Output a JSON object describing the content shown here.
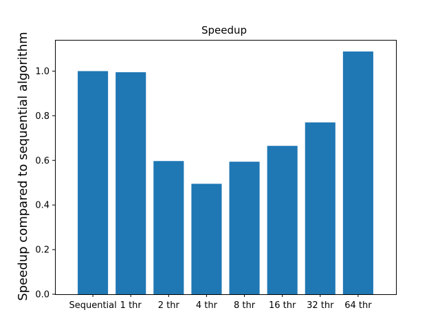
{
  "chart_data": {
    "type": "bar",
    "title": "Speedup",
    "xlabel": "",
    "ylabel": "Speedup compared to sequential algorithm",
    "categories": [
      "Sequential",
      "1 thr",
      "2 thr",
      "4 thr",
      "8 thr",
      "16 thr",
      "32 thr",
      "64 thr"
    ],
    "values": [
      1.0,
      0.995,
      0.597,
      0.495,
      0.594,
      0.665,
      0.77,
      1.088
    ],
    "ylim": [
      0,
      1.14
    ],
    "yticks": [
      "0.0",
      "0.2",
      "0.4",
      "0.6",
      "0.8",
      "1.0"
    ],
    "bar_color": "#1f77b4",
    "grid": false
  }
}
